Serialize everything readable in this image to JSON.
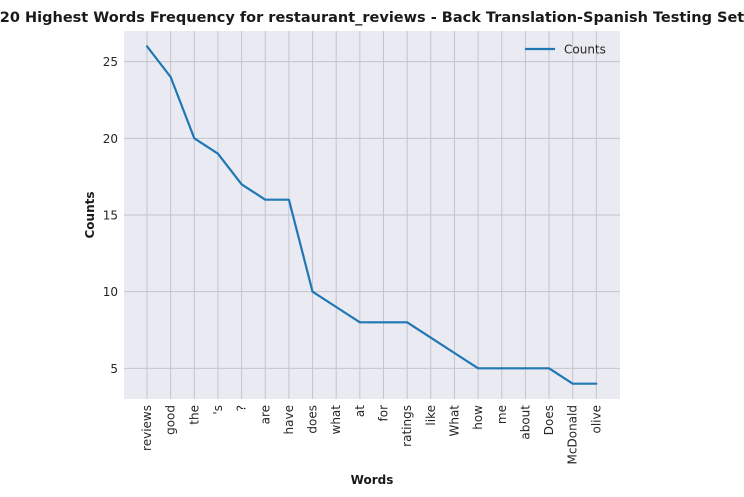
{
  "chart_data": {
    "type": "line",
    "title": "20 Highest Words Frequency for restaurant_reviews - Back Translation-Spanish Testing Set",
    "xlabel": "Words",
    "ylabel": "Counts",
    "categories": [
      "reviews",
      "good",
      "the",
      "'s",
      "?",
      "are",
      "have",
      "does",
      "what",
      "at",
      "for",
      "ratings",
      "like",
      "What",
      "how",
      "me",
      "about",
      "Does",
      "McDonald",
      "olive"
    ],
    "series": [
      {
        "name": "Counts",
        "values": [
          26,
          24,
          20,
          19,
          17,
          16,
          16,
          10,
          9,
          8,
          8,
          8,
          7,
          6,
          5,
          5,
          5,
          5,
          4,
          4
        ]
      }
    ],
    "yticks": [
      5,
      10,
      15,
      20,
      25
    ],
    "ylim": [
      3.0,
      27.0
    ],
    "grid": true,
    "legend_position": "top-right",
    "colors": {
      "line": "#1f77b4",
      "plot_background": "#eaeaf2",
      "grid": "#c4c4cc"
    }
  }
}
